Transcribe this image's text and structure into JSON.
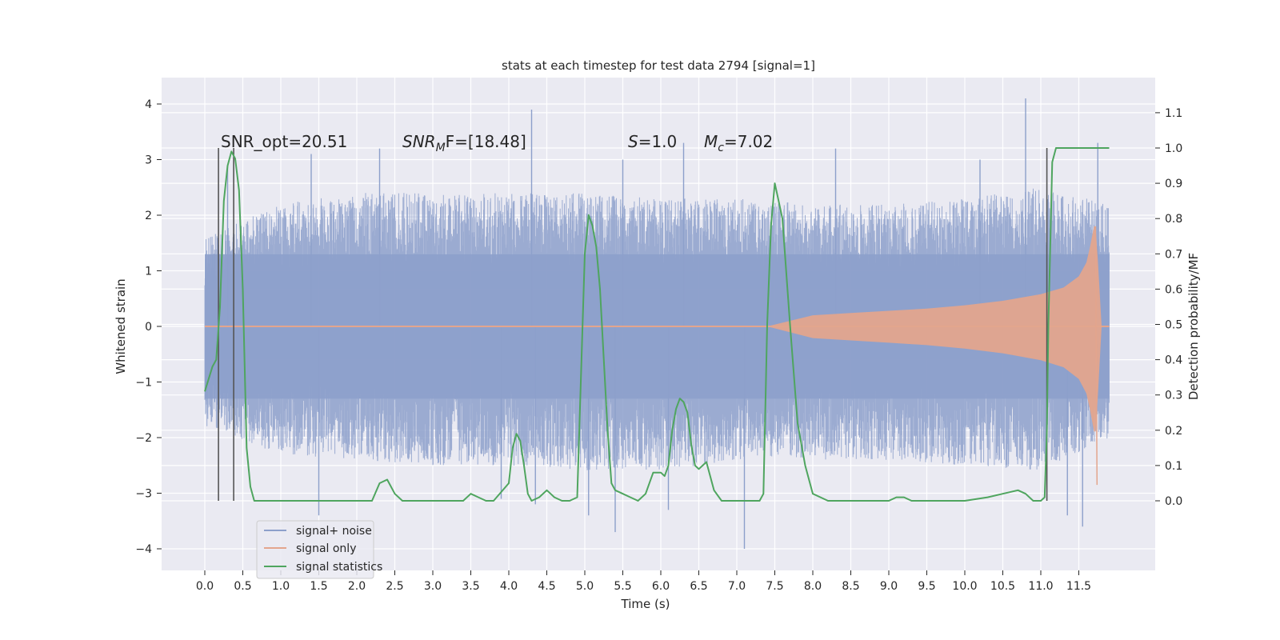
{
  "chart_data": {
    "type": "line",
    "title": "stats at each timestep for test data 2794 [signal=1]",
    "xlabel": "Time (s)",
    "ylabel": "Whitened strain",
    "ylabel_right": "Detection probability/MF",
    "xlim": [
      -0.5,
      12.5
    ],
    "ylim": [
      -4.4,
      4.5
    ],
    "ylim_right": [
      -0.2,
      1.2
    ],
    "x_ticks": [
      "0.0",
      "0.5",
      "1.0",
      "1.5",
      "2.0",
      "2.5",
      "3.0",
      "3.5",
      "4.0",
      "4.5",
      "5.0",
      "5.5",
      "6.0",
      "6.5",
      "7.0",
      "7.5",
      "8.0",
      "8.5",
      "9.0",
      "9.5",
      "10.0",
      "10.5",
      "11.0",
      "11.5"
    ],
    "y_ticks": [
      "4",
      "3",
      "2",
      "1",
      "0",
      "−1",
      "−2",
      "−3",
      "−4"
    ],
    "y_ticks_right": [
      "1.1",
      "1.0",
      "0.9",
      "0.8",
      "0.7",
      "0.6",
      "0.5",
      "0.4",
      "0.3",
      "0.2",
      "0.1",
      "0.0"
    ],
    "grid": true,
    "legend_placement": "lower-left",
    "annotations": [
      {
        "text": "SNR_opt=20.51",
        "x": 0.2
      },
      {
        "text": "SNR",
        "sub": "M",
        "tail": "F=[18.48]",
        "x": 2.6
      },
      {
        "text": "S",
        "tail": "=1.0",
        "x": 5.6
      },
      {
        "text": "M",
        "sub": "c",
        "tail": "=7.02",
        "x": 6.6
      }
    ],
    "vlines": [
      0.18,
      0.38,
      11.08
    ],
    "series": [
      {
        "name": "signal+ noise",
        "color": "#8da0cb",
        "envelope_x": [
          0.0,
          1.0,
          2.0,
          3.0,
          4.0,
          5.0,
          6.0,
          7.0,
          8.0,
          9.0,
          10.0,
          11.0,
          11.9
        ],
        "envelope_upper": [
          1.6,
          2.2,
          2.4,
          2.4,
          2.4,
          2.4,
          2.3,
          2.3,
          2.2,
          2.2,
          2.3,
          2.5,
          2.2
        ],
        "envelope_lower": [
          -1.8,
          -2.3,
          -2.4,
          -2.5,
          -2.5,
          -2.6,
          -2.6,
          -2.4,
          -2.4,
          -2.4,
          -2.5,
          -2.6,
          -2.0
        ],
        "spikes": [
          {
            "x": 0.3,
            "y": 2.9
          },
          {
            "x": 1.4,
            "y": 3.1
          },
          {
            "x": 1.5,
            "y": -3.4
          },
          {
            "x": 2.3,
            "y": 3.2
          },
          {
            "x": 3.9,
            "y": -3.1
          },
          {
            "x": 4.3,
            "y": 3.9
          },
          {
            "x": 4.35,
            "y": -3.2
          },
          {
            "x": 5.05,
            "y": -3.4
          },
          {
            "x": 5.4,
            "y": -3.7
          },
          {
            "x": 5.5,
            "y": 3.0
          },
          {
            "x": 6.1,
            "y": -3.3
          },
          {
            "x": 6.3,
            "y": 3.3
          },
          {
            "x": 7.1,
            "y": -4.0
          },
          {
            "x": 8.3,
            "y": 3.2
          },
          {
            "x": 10.2,
            "y": 3.0
          },
          {
            "x": 10.8,
            "y": 4.1
          },
          {
            "x": 11.35,
            "y": -3.4
          },
          {
            "x": 11.55,
            "y": -3.6
          },
          {
            "x": 11.75,
            "y": 3.3
          }
        ]
      },
      {
        "name": "signal only",
        "color": "#e3a58d",
        "x": [
          7.4,
          8.0,
          8.5,
          9.0,
          9.5,
          10.0,
          10.5,
          11.0,
          11.3,
          11.5,
          11.6,
          11.65,
          11.7,
          11.72,
          11.75,
          11.8
        ],
        "amplitude": [
          0.0,
          0.2,
          0.24,
          0.28,
          0.32,
          0.38,
          0.46,
          0.58,
          0.7,
          0.9,
          1.15,
          1.45,
          1.8,
          1.8,
          1.2,
          0.0
        ]
      },
      {
        "name": "signal statistics",
        "color": "#4fa55f",
        "axis": "right",
        "x": [
          0.0,
          0.1,
          0.15,
          0.2,
          0.25,
          0.3,
          0.35,
          0.4,
          0.45,
          0.5,
          0.55,
          0.6,
          0.65,
          0.7,
          0.8,
          1.0,
          1.5,
          2.0,
          2.2,
          2.3,
          2.4,
          2.5,
          2.6,
          2.7,
          3.0,
          3.4,
          3.5,
          3.6,
          3.7,
          3.8,
          4.0,
          4.05,
          4.1,
          4.15,
          4.2,
          4.25,
          4.3,
          4.4,
          4.5,
          4.55,
          4.6,
          4.7,
          4.8,
          4.9,
          5.0,
          5.05,
          5.1,
          5.15,
          5.2,
          5.3,
          5.35,
          5.4,
          5.5,
          5.6,
          5.7,
          5.8,
          5.9,
          6.0,
          6.05,
          6.1,
          6.15,
          6.2,
          6.25,
          6.3,
          6.35,
          6.4,
          6.45,
          6.5,
          6.55,
          6.6,
          6.7,
          6.8,
          7.0,
          7.2,
          7.3,
          7.35,
          7.4,
          7.45,
          7.5,
          7.55,
          7.6,
          7.7,
          7.8,
          7.9,
          8.0,
          8.2,
          9.0,
          9.1,
          9.2,
          9.3,
          10.0,
          10.3,
          10.5,
          10.7,
          10.8,
          10.9,
          11.0,
          11.05,
          11.08,
          11.1,
          11.15,
          11.2,
          11.3,
          11.5,
          11.9
        ],
        "y": [
          0.31,
          0.38,
          0.4,
          0.55,
          0.85,
          0.95,
          0.99,
          0.97,
          0.88,
          0.6,
          0.15,
          0.04,
          0.0,
          0.0,
          0.0,
          0.0,
          0.0,
          0.0,
          0.0,
          0.05,
          0.06,
          0.02,
          0.0,
          0.0,
          0.0,
          0.0,
          0.02,
          0.01,
          0.0,
          0.0,
          0.05,
          0.15,
          0.19,
          0.17,
          0.1,
          0.02,
          0.0,
          0.01,
          0.03,
          0.02,
          0.01,
          0.0,
          0.0,
          0.01,
          0.7,
          0.81,
          0.78,
          0.72,
          0.6,
          0.2,
          0.05,
          0.03,
          0.02,
          0.01,
          0.0,
          0.02,
          0.08,
          0.08,
          0.07,
          0.1,
          0.2,
          0.26,
          0.29,
          0.28,
          0.25,
          0.16,
          0.1,
          0.09,
          0.1,
          0.11,
          0.03,
          0.0,
          0.0,
          0.0,
          0.0,
          0.02,
          0.5,
          0.78,
          0.9,
          0.85,
          0.8,
          0.5,
          0.22,
          0.1,
          0.02,
          0.0,
          0.0,
          0.01,
          0.01,
          0.0,
          0.0,
          0.01,
          0.02,
          0.03,
          0.02,
          0.0,
          0.0,
          0.01,
          0.2,
          0.5,
          0.96,
          1.0,
          1.0,
          1.0,
          1.0
        ]
      }
    ]
  }
}
